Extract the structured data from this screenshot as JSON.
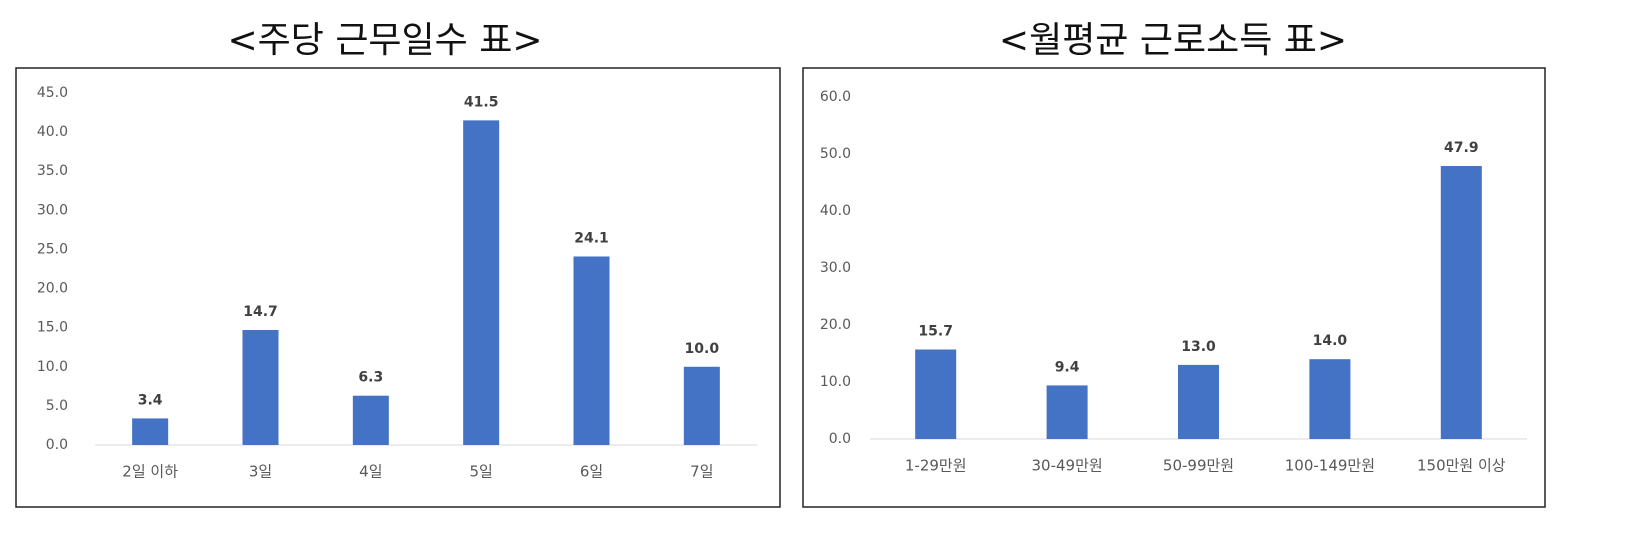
{
  "chart_data": [
    {
      "type": "bar",
      "title": "<주당 근무일수 표>",
      "categories": [
        "2일 이하",
        "3일",
        "4일",
        "5일",
        "6일",
        "7일"
      ],
      "values": [
        3.4,
        14.7,
        6.3,
        41.5,
        24.1,
        10.0
      ],
      "value_labels": [
        "3.4",
        "14.7",
        "6.3",
        "41.5",
        "24.1",
        "10.0"
      ],
      "color": "#4472c4",
      "ylim": [
        0,
        45
      ],
      "yticks": [
        {
          "value": 0,
          "label": "0.0"
        },
        {
          "value": 5,
          "label": "5.0"
        },
        {
          "value": 10,
          "label": "10.0"
        },
        {
          "value": 15,
          "label": "15.0"
        },
        {
          "value": 20,
          "label": "20.0"
        },
        {
          "value": 25,
          "label": "25.0"
        },
        {
          "value": 30,
          "label": "30.0"
        },
        {
          "value": 35,
          "label": "35.0"
        },
        {
          "value": 40,
          "label": "40.0"
        },
        {
          "value": 45,
          "label": "45.0"
        }
      ]
    },
    {
      "type": "bar",
      "title": "<월평균 근로소득 표>",
      "categories": [
        "1-29만원",
        "30-49만원",
        "50-99만원",
        "100-149만원",
        "150만원 이상"
      ],
      "values": [
        15.7,
        9.4,
        13.0,
        14.0,
        47.9
      ],
      "value_labels": [
        "15.7",
        "9.4",
        "13.0",
        "14.0",
        "47.9"
      ],
      "color": "#4472c4",
      "ylim": [
        0,
        60
      ],
      "yticks": [
        {
          "value": 0,
          "label": "0.0"
        },
        {
          "value": 10,
          "label": "10.0"
        },
        {
          "value": 20,
          "label": "20.0"
        },
        {
          "value": 30,
          "label": "30.0"
        },
        {
          "value": 40,
          "label": "40.0"
        },
        {
          "value": 50,
          "label": "50.0"
        },
        {
          "value": 60,
          "label": "60.0"
        }
      ]
    }
  ]
}
